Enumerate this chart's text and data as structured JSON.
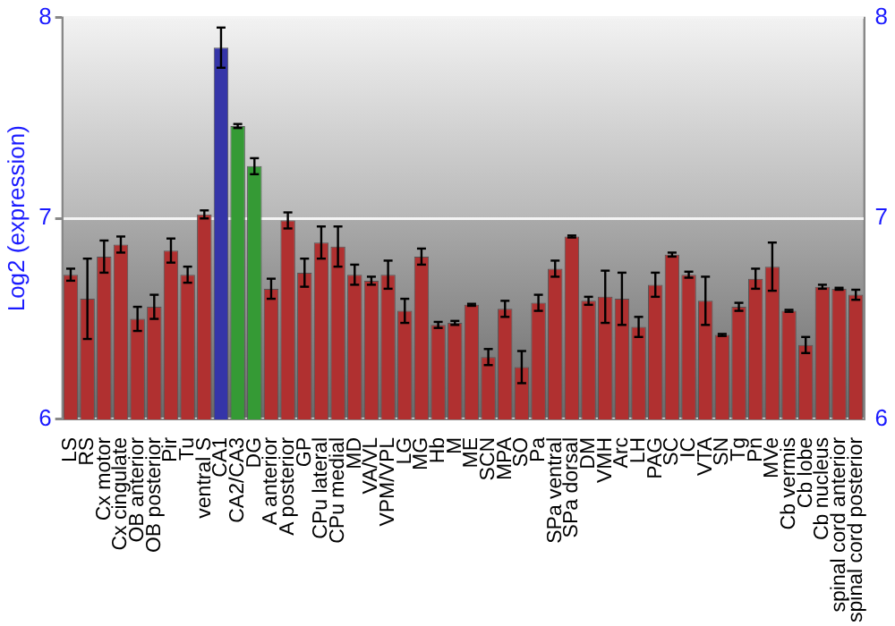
{
  "chart_data": {
    "type": "bar",
    "ylabel": "Log2 (expression)",
    "categories": [
      "LS",
      "RS",
      "Cx motor",
      "Cx cingulate",
      "OB anterior",
      "OB posterior",
      "Pir",
      "Tu",
      "ventral S",
      "CA1",
      "CA2/CA3",
      "DG",
      "A anterior",
      "A posterior",
      "GP",
      "CPu lateral",
      "CPu medial",
      "MD",
      "VA/VL",
      "VPM/VPL",
      "LG",
      "MG",
      "Hb",
      "M",
      "ME",
      "SCN",
      "MPA",
      "SO",
      "Pa",
      "SPa ventral",
      "SPa dorsal",
      "DM",
      "VMH",
      "Arc",
      "LH",
      "PAG",
      "SC",
      "IC",
      "VTA",
      "SN",
      "Tg",
      "Pn",
      "MVe",
      "Cb vermis",
      "Cb lobe",
      "Cb nucleus",
      "spinal cord anterior",
      "spinal cord posterior"
    ],
    "values": [
      6.72,
      6.6,
      6.81,
      6.87,
      6.5,
      6.56,
      6.84,
      6.72,
      7.02,
      7.85,
      7.46,
      7.26,
      6.65,
      6.99,
      6.73,
      6.88,
      6.86,
      6.72,
      6.69,
      6.72,
      6.54,
      6.81,
      6.47,
      6.48,
      6.57,
      6.31,
      6.55,
      6.26,
      6.58,
      6.75,
      6.91,
      6.59,
      6.61,
      6.6,
      6.46,
      6.67,
      6.82,
      6.72,
      6.59,
      6.42,
      6.56,
      6.7,
      6.76,
      6.54,
      6.37,
      6.66,
      6.65,
      6.62
    ],
    "errors": [
      0.03,
      0.2,
      0.08,
      0.04,
      0.06,
      0.06,
      0.06,
      0.04,
      0.02,
      0.1,
      0.01,
      0.04,
      0.05,
      0.04,
      0.07,
      0.08,
      0.1,
      0.05,
      0.02,
      0.07,
      0.06,
      0.04,
      0.015,
      0.01,
      0.005,
      0.04,
      0.04,
      0.08,
      0.04,
      0.04,
      0.005,
      0.02,
      0.13,
      0.13,
      0.05,
      0.06,
      0.01,
      0.015,
      0.12,
      0.005,
      0.02,
      0.05,
      0.12,
      0.005,
      0.04,
      0.01,
      0.005,
      0.025
    ],
    "colors": [
      "#b03030",
      "#b03030",
      "#b03030",
      "#b03030",
      "#b03030",
      "#b03030",
      "#b03030",
      "#b03030",
      "#b03030",
      "#3535a8",
      "#359a35",
      "#359a35",
      "#b03030",
      "#b03030",
      "#b03030",
      "#b03030",
      "#b03030",
      "#b03030",
      "#b03030",
      "#b03030",
      "#b03030",
      "#b03030",
      "#b03030",
      "#b03030",
      "#b03030",
      "#b03030",
      "#b03030",
      "#b03030",
      "#b03030",
      "#b03030",
      "#b03030",
      "#b03030",
      "#b03030",
      "#b03030",
      "#b03030",
      "#b03030",
      "#b03030",
      "#b03030",
      "#b03030",
      "#b03030",
      "#b03030",
      "#b03030",
      "#b03030",
      "#b03030",
      "#b03030",
      "#b03030",
      "#b03030",
      "#b03030"
    ],
    "ylim": [
      6,
      8
    ],
    "yticks": [
      6,
      7,
      8
    ],
    "y2lim": [
      6,
      8
    ],
    "y2ticks": [
      6,
      7,
      8
    ],
    "grid": "y",
    "legend": false
  }
}
